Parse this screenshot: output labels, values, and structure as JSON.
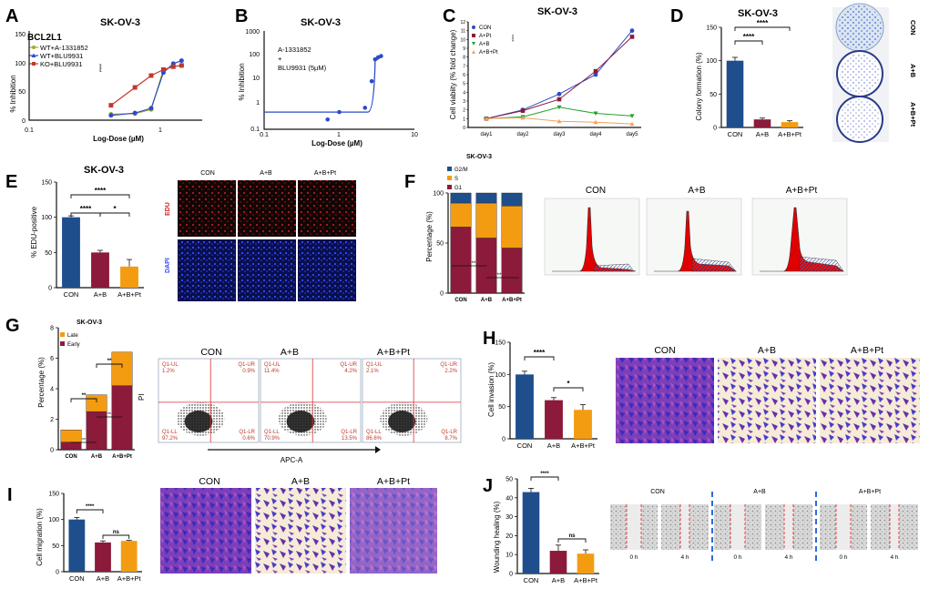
{
  "panels": {
    "A": {
      "letter": "A",
      "title": "SK-OV-3",
      "gene": "BCL2L1",
      "ylabel": "% Inhibition",
      "xlabel": "Log-Dose (µM)",
      "yticks": [
        "0",
        "50",
        "100",
        "150"
      ],
      "xticks": [
        "0.1",
        "1"
      ],
      "legend": [
        "WT+A-1331852",
        "WT+BLU9931",
        "KO+BLU9931"
      ],
      "sig": "****"
    },
    "B": {
      "letter": "B",
      "title": "SK-OV-3",
      "ylabel": "% Inhibition",
      "xlabel": "Log-Dose (µM)",
      "yticks": [
        "0.1",
        "1",
        "10",
        "100",
        "1000"
      ],
      "xticks": [
        "0.1",
        "1",
        "10"
      ],
      "note": [
        "A-1331852",
        "+",
        "BLU9931 (5µM)"
      ]
    },
    "C": {
      "letter": "C",
      "title": "SK-OV-3",
      "ylabel": "Cell viabiity (% fold change)",
      "yticks": [
        "0",
        "1",
        "2",
        "3",
        "4",
        "5",
        "6",
        "7",
        "8",
        "9",
        "10",
        "11",
        "12"
      ],
      "xticks": [
        "day1",
        "day2",
        "day3",
        "day4",
        "day5"
      ],
      "legend": [
        "CON",
        "A+Pt",
        "A+B",
        "A+B+Pt"
      ],
      "sig": "****"
    },
    "D": {
      "letter": "D",
      "title": "SK-OV-3",
      "ylabel": "Colony formation (%)",
      "yticks": [
        "0",
        "50",
        "100",
        "150"
      ],
      "categories": [
        "CON",
        "A+B",
        "A+B+Pt"
      ],
      "sig": [
        "****",
        "****"
      ],
      "photo_labels": [
        "CON",
        "A+B",
        "A+B+Pt"
      ]
    },
    "E": {
      "letter": "E",
      "title": "SK-OV-3",
      "ylabel": "% EDU-positive",
      "yticks": [
        "0",
        "50",
        "100",
        "150"
      ],
      "categories": [
        "CON",
        "A+B",
        "A+B+Pt"
      ],
      "sig": [
        "****",
        "****",
        "*"
      ],
      "cols": [
        "CON",
        "A+B",
        "A+B+Pt"
      ],
      "rows": [
        "EDU",
        "DAPI"
      ]
    },
    "F": {
      "letter": "F",
      "title": "SK-OV-3",
      "ylabel": "Percentage (%)",
      "yticks": [
        "0",
        "50",
        "100"
      ],
      "legend": [
        "G2/M",
        "S",
        "G1"
      ],
      "categories": [
        "CON",
        "A+B",
        "A+B+Pt"
      ],
      "sig": [
        "**",
        "**"
      ],
      "hist_titles": [
        "CON",
        "A+B",
        "A+B+Pt"
      ]
    },
    "G": {
      "letter": "G",
      "title": "SK-OV-3",
      "ylabel": "Percentage (%)",
      "yticks": [
        "0",
        "2",
        "4",
        "6",
        "8"
      ],
      "legend": [
        "Late",
        "Early"
      ],
      "categories": [
        "CON",
        "A+B",
        "A+B+Pt"
      ],
      "sig": [
        "**",
        "**",
        "**",
        "**"
      ],
      "flow_titles": [
        "CON",
        "A+B",
        "A+B+Pt"
      ],
      "y_axis": "PI",
      "x_axis": "APC-A",
      "quadrants": [
        {
          "ul": "Q1-UL",
          "ulv": "1.2%",
          "ur": "Q1-UR",
          "urv": "0.9%",
          "ll": "Q1-LL",
          "llv": "97.2%",
          "lr": "Q1-LR",
          "lrv": "0.6%"
        },
        {
          "ul": "Q1-UL",
          "ulv": "11.4%",
          "ur": "Q1-UR",
          "urv": "4.2%",
          "ll": "Q1-LL",
          "llv": "70.9%",
          "lr": "Q1-LR",
          "lrv": "13.5%"
        },
        {
          "ul": "Q1-UL",
          "ulv": "2.1%",
          "ur": "Q1-UR",
          "urv": "2.2%",
          "ll": "Q1-LL",
          "llv": "86.6%",
          "lr": "Q1-LR",
          "lrv": "8.7%"
        }
      ]
    },
    "H": {
      "letter": "H",
      "ylabel": "Cell invasion (%)",
      "yticks": [
        "0",
        "50",
        "100",
        "150"
      ],
      "categories": [
        "CON",
        "A+B",
        "A+B+Pt"
      ],
      "sig": [
        "****",
        "*"
      ],
      "photo_titles": [
        "CON",
        "A+B",
        "A+B+Pt"
      ]
    },
    "I": {
      "letter": "I",
      "ylabel": "Cell migration (%)",
      "yticks": [
        "0",
        "50",
        "100",
        "150"
      ],
      "categories": [
        "CON",
        "A+B",
        "A+B+Pt"
      ],
      "sig": [
        "****",
        "ns"
      ],
      "photo_titles": [
        "CON",
        "A+B",
        "A+B+Pt"
      ]
    },
    "J": {
      "letter": "J",
      "ylabel": "Wounding healing (%)",
      "yticks": [
        "0",
        "10",
        "20",
        "30",
        "40",
        "50"
      ],
      "categories": [
        "CON",
        "A+B",
        "A+B+Pt"
      ],
      "sig": [
        "****",
        "ns"
      ],
      "photo_titles": [
        "CON",
        "A+B",
        "A+B+Pt"
      ],
      "times": [
        "0 h",
        "4 h"
      ]
    }
  },
  "colors": {
    "navy": "#1f4e8c",
    "maroon": "#8b1a3b",
    "orange": "#f39c12",
    "olive": "#a8a832",
    "blue": "#2b4bc8",
    "red": "#c0392b",
    "green": "#27a02b",
    "lightorange": "#f5a15b"
  },
  "chart_data": [
    {
      "panel": "A",
      "type": "line",
      "title": "SK-OV-3",
      "xlabel": "Log-Dose (µM)",
      "ylabel": "% Inhibition",
      "xscale": "log",
      "xlim": [
        0.1,
        3
      ],
      "ylim": [
        0,
        150
      ],
      "series": [
        {
          "name": "WT+A-1331852",
          "color": "#a8a832",
          "x": [
            0.5,
            0.8,
            1.1,
            1.4,
            1.7,
            2.0
          ],
          "y": [
            10,
            11,
            18,
            85,
            90,
            92
          ]
        },
        {
          "name": "WT+BLU9931",
          "color": "#2b4bc8",
          "x": [
            0.5,
            0.8,
            1.1,
            1.4,
            1.7,
            2.0
          ],
          "y": [
            8,
            12,
            20,
            80,
            95,
            100
          ]
        },
        {
          "name": "KO+BLU9931",
          "color": "#c0392b",
          "x": [
            0.5,
            0.8,
            1.1,
            1.4,
            1.7,
            2.0
          ],
          "y": [
            25,
            55,
            75,
            85,
            90,
            92
          ]
        }
      ]
    },
    {
      "panel": "B",
      "type": "scatter",
      "title": "SK-OV-3",
      "xlabel": "Log-Dose (µM)",
      "ylabel": "% Inhibition",
      "xscale": "log",
      "yscale": "log",
      "xlim": [
        0.1,
        10
      ],
      "ylim": [
        0.1,
        1000
      ],
      "series": [
        {
          "name": "A-1331852 + BLU9931 (5µM)",
          "color": "#2b4bc8",
          "x": [
            0.7,
            1.0,
            2.2,
            2.7,
            3.0,
            3.3,
            3.6
          ],
          "y": [
            0.25,
            0.5,
            0.75,
            9,
            70,
            85,
            95
          ]
        }
      ]
    },
    {
      "panel": "C",
      "type": "line",
      "title": "SK-OV-3",
      "ylabel": "Cell viabiity (% fold change)",
      "categories": [
        "day1",
        "day2",
        "day3",
        "day4",
        "day5"
      ],
      "ylim": [
        0,
        12
      ],
      "series": [
        {
          "name": "CON",
          "color": "#2b4bc8",
          "values": [
            1.0,
            2.0,
            3.8,
            6.0,
            11.0
          ]
        },
        {
          "name": "A+Pt",
          "color": "#8b1a3b",
          "values": [
            1.0,
            1.9,
            3.2,
            6.4,
            10.3
          ]
        },
        {
          "name": "A+B",
          "color": "#27a02b",
          "values": [
            1.0,
            1.2,
            2.3,
            1.6,
            1.3
          ]
        },
        {
          "name": "A+B+Pt",
          "color": "#f5a15b",
          "values": [
            1.0,
            1.1,
            0.7,
            0.6,
            0.4
          ]
        }
      ]
    },
    {
      "panel": "D",
      "type": "bar",
      "title": "SK-OV-3",
      "ylabel": "Colony formation (%)",
      "categories": [
        "CON",
        "A+B",
        "A+B+Pt"
      ],
      "values": [
        100,
        12,
        8
      ],
      "errors": [
        5,
        2,
        2
      ],
      "ylim": [
        0,
        150
      ]
    },
    {
      "panel": "E",
      "type": "bar",
      "title": "SK-OV-3",
      "ylabel": "% EDU-positive",
      "categories": [
        "CON",
        "A+B",
        "A+B+Pt"
      ],
      "values": [
        100,
        50,
        30
      ],
      "errors": [
        2,
        3,
        10
      ],
      "ylim": [
        0,
        150
      ]
    },
    {
      "panel": "F",
      "type": "bar",
      "stacked": true,
      "title": "SK-OV-3",
      "ylabel": "Percentage (%)",
      "categories": [
        "CON",
        "A+B",
        "A+B+Pt"
      ],
      "ylim": [
        0,
        100
      ],
      "series": [
        {
          "name": "G1",
          "values": [
            66,
            55,
            45
          ]
        },
        {
          "name": "S",
          "values": [
            24,
            35,
            42
          ]
        },
        {
          "name": "G2/M",
          "values": [
            10,
            10,
            13
          ]
        }
      ]
    },
    {
      "panel": "G",
      "type": "bar",
      "stacked": true,
      "title": "SK-OV-3",
      "ylabel": "Percentage (%)",
      "categories": [
        "CON",
        "A+B",
        "A+B+Pt"
      ],
      "ylim": [
        0,
        8
      ],
      "series": [
        {
          "name": "Early",
          "values": [
            0.5,
            2.5,
            4.2
          ]
        },
        {
          "name": "Late",
          "values": [
            0.8,
            1.1,
            2.2
          ]
        }
      ]
    },
    {
      "panel": "H",
      "type": "bar",
      "ylabel": "Cell invasion (%)",
      "categories": [
        "CON",
        "A+B",
        "A+B+Pt"
      ],
      "values": [
        100,
        60,
        45
      ],
      "errors": [
        5,
        4,
        8
      ],
      "ylim": [
        0,
        150
      ]
    },
    {
      "panel": "I",
      "type": "bar",
      "ylabel": "Cell migration (%)",
      "categories": [
        "CON",
        "A+B",
        "A+B+Pt"
      ],
      "values": [
        100,
        56,
        59
      ],
      "errors": [
        4,
        3,
        1
      ],
      "ylim": [
        0,
        150
      ]
    },
    {
      "panel": "J",
      "type": "bar",
      "ylabel": "Wounding healing (%)",
      "categories": [
        "CON",
        "A+B",
        "A+B+Pt"
      ],
      "values": [
        43,
        12,
        10.5
      ],
      "errors": [
        2,
        3,
        2
      ],
      "ylim": [
        0,
        50
      ]
    }
  ]
}
